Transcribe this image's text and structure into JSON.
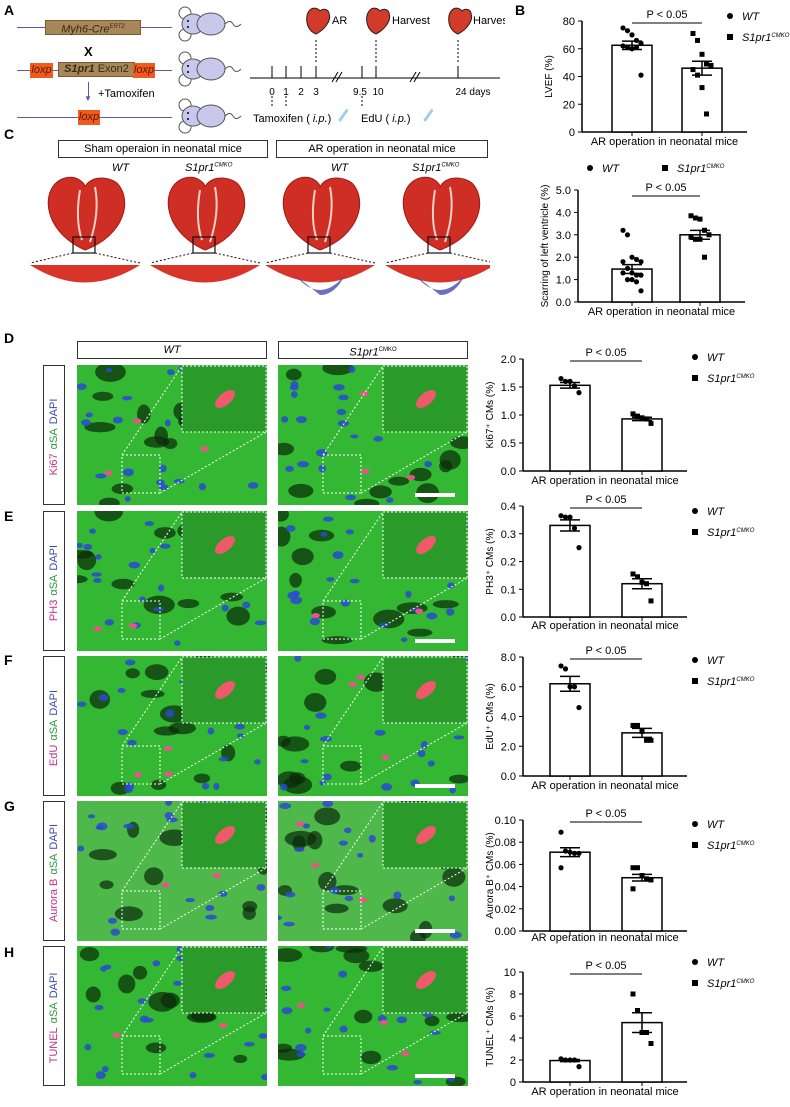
{
  "panels": {
    "A": "A",
    "B": "B",
    "C": "C",
    "D": "D",
    "E": "E",
    "F": "F",
    "G": "G",
    "H": "H"
  },
  "panel_a": {
    "cre": "Myh6-Cre",
    "cre_sup": "ERT2",
    "cross": "X",
    "loxp": "loxp",
    "gene": "S1pr1",
    "exon": "Exon2",
    "tamoxifen_step": "+Tamoxifen",
    "timeline": {
      "events": [
        "AR",
        "Harvest",
        "Harvest"
      ],
      "ticks": [
        "0",
        "1",
        "2",
        "3",
        "9.5",
        "10",
        "24 days"
      ],
      "tamoxifen": "Tamoxifen",
      "edu": "EdU",
      "ip": "i.p."
    }
  },
  "panel_c": {
    "sham_header": "Sham operaion in neonatal mice",
    "ar_header": "AR operation in neonatal mice",
    "wt": "WT",
    "ko": "S1pr1",
    "ko_sup": "CMKO"
  },
  "micro_headers": {
    "wt": "WT",
    "ko": "S1pr1",
    "ko_sup": "CMKO"
  },
  "stain_rows": [
    {
      "marker": "Ki67",
      "asa": "αSA",
      "dapi": "DAPI"
    },
    {
      "marker": "PH3",
      "asa": "αSA",
      "dapi": "DAPI"
    },
    {
      "marker": "EdU",
      "asa": "αSA",
      "dapi": "DAPI"
    },
    {
      "marker": "Aurora B",
      "asa": "αSA",
      "dapi": "DAPI"
    },
    {
      "marker": "TUNEL",
      "asa": "αSA",
      "dapi": "DAPI"
    }
  ],
  "colors": {
    "marker": "#c0308a",
    "asa": "#2a9a3a",
    "dapi": "#3a4ab0",
    "myocardium": "#d8342a",
    "fibrosis": "#4a4ab0",
    "alpha_sa": "#2fc42f"
  },
  "chart_data": [
    {
      "id": "lvef",
      "type": "bar",
      "ylabel": "LVEF (%)",
      "xlabel": "AR operation in neonatal mice",
      "ylim": [
        0,
        80
      ],
      "yticks": [
        "0",
        "20",
        "40",
        "60",
        "80"
      ],
      "significance": "P < 0.05",
      "legend": {
        "wt": "WT",
        "ko": "S1pr1",
        "ko_sup": "CMKO"
      },
      "legend_placement": "right",
      "series": [
        {
          "name": "WT",
          "mean": 62.5,
          "sem": 3,
          "points": [
            75,
            73,
            70,
            66,
            64,
            62,
            61,
            60,
            61,
            41
          ]
        },
        {
          "name": "S1pr1 CMKO",
          "mean": 46,
          "sem": 5,
          "points": [
            71,
            66,
            56,
            49,
            48,
            45,
            41,
            32,
            13
          ]
        }
      ]
    },
    {
      "id": "scar",
      "type": "bar",
      "ylabel": "Scarring of left ventricle (%)",
      "xlabel": "AR operation in neonatal mice",
      "ylim": [
        0,
        5
      ],
      "yticks": [
        "0.0",
        "1.0",
        "2.0",
        "3.0",
        "4.0",
        "5.0"
      ],
      "significance": "P < 0.05",
      "legend": {
        "wt": "WT",
        "ko": "S1pr1",
        "ko_sup": "CMKO"
      },
      "legend_placement": "top",
      "series": [
        {
          "name": "WT",
          "mean": 1.47,
          "sem": 0.2,
          "points": [
            3.2,
            3.0,
            2.0,
            1.9,
            1.8,
            1.8,
            1.5,
            1.3,
            1.2,
            1.2,
            1.3,
            1.0,
            1.0,
            0.9,
            0.5
          ]
        },
        {
          "name": "S1pr1 CMKO",
          "mean": 3.0,
          "sem": 0.2,
          "points": [
            3.85,
            3.75,
            3.7,
            3.2,
            3.0,
            2.9,
            2.8,
            2.8,
            2.0
          ]
        }
      ]
    },
    {
      "id": "ki67",
      "type": "bar",
      "ylabel": "Ki67⁺ CMs (%)",
      "xlabel": "AR operation in neonatal mice",
      "ylim": [
        0,
        2
      ],
      "yticks": [
        "0.0",
        "0.5",
        "1.0",
        "1.5",
        "2.0"
      ],
      "significance": "P < 0.05",
      "legend": {
        "wt": "WT",
        "ko": "S1pr1",
        "ko_sup": "CMKO"
      },
      "legend_placement": "right",
      "series": [
        {
          "name": "WT",
          "mean": 1.53,
          "sem": 0.05,
          "points": [
            1.65,
            1.6,
            1.6,
            1.52,
            1.4
          ]
        },
        {
          "name": "S1pr1 CMKO",
          "mean": 0.93,
          "sem": 0.03,
          "points": [
            1.02,
            0.98,
            0.95,
            0.93,
            0.85
          ]
        }
      ]
    },
    {
      "id": "ph3",
      "type": "bar",
      "ylabel": "PH3⁺ CMs (%)",
      "xlabel": "AR operation in neonatal mice",
      "ylim": [
        0,
        0.4
      ],
      "yticks": [
        "0.0",
        "0.1",
        "0.2",
        "0.3",
        "0.4"
      ],
      "significance": "P < 0.05",
      "legend": {
        "wt": "WT",
        "ko": "S1pr1",
        "ko_sup": "CMKO"
      },
      "legend_placement": "right",
      "series": [
        {
          "name": "WT",
          "mean": 0.33,
          "sem": 0.02,
          "points": [
            0.365,
            0.36,
            0.36,
            0.32,
            0.25
          ]
        },
        {
          "name": "S1pr1 CMKO",
          "mean": 0.12,
          "sem": 0.018,
          "points": [
            0.155,
            0.145,
            0.125,
            0.12,
            0.058
          ]
        }
      ]
    },
    {
      "id": "edu",
      "type": "bar",
      "ylabel": "EdU⁺ CMs (%)",
      "xlabel": "AR operation in neonatal mice",
      "ylim": [
        0,
        8
      ],
      "yticks": [
        "0.0",
        "2.0",
        "4.0",
        "6.0",
        "8.0"
      ],
      "significance": "P < 0.05",
      "legend": {
        "wt": "WT",
        "ko": "S1pr1",
        "ko_sup": "CMKO"
      },
      "legend_placement": "right",
      "series": [
        {
          "name": "WT",
          "mean": 6.2,
          "sem": 0.5,
          "points": [
            7.4,
            7.2,
            6.0,
            6.0,
            4.6
          ]
        },
        {
          "name": "S1pr1 CMKO",
          "mean": 2.9,
          "sem": 0.3,
          "points": [
            3.4,
            3.4,
            3.0,
            2.4,
            2.4
          ]
        }
      ]
    },
    {
      "id": "aurorab",
      "type": "bar",
      "ylabel": "Aurora B⁺ CMs (%)",
      "xlabel": "AR operation in neonatal mice",
      "ylim": [
        0,
        0.1
      ],
      "yticks": [
        "0.00",
        "0.02",
        "0.04",
        "0.06",
        "0.08",
        "0.10"
      ],
      "significance": "P < 0.05",
      "legend": {
        "wt": "WT",
        "ko": "S1pr1",
        "ko_sup": "CMKO"
      },
      "legend_placement": "right",
      "series": [
        {
          "name": "WT",
          "mean": 0.071,
          "sem": 0.004,
          "points": [
            0.089,
            0.072,
            0.071,
            0.07,
            0.07,
            0.057
          ]
        },
        {
          "name": "S1pr1 CMKO",
          "mean": 0.048,
          "sem": 0.003,
          "points": [
            0.057,
            0.057,
            0.05,
            0.047,
            0.046,
            0.038
          ]
        }
      ]
    },
    {
      "id": "tunel",
      "type": "bar",
      "ylabel": "TUNEL⁺ CMs (%)",
      "xlabel": "AR operation in neonatal mice",
      "ylim": [
        0,
        10
      ],
      "yticks": [
        "0",
        "2",
        "4",
        "6",
        "8",
        "10"
      ],
      "significance": "P < 0.05",
      "legend": {
        "wt": "WT",
        "ko": "S1pr1",
        "ko_sup": "CMKO"
      },
      "legend_placement": "right",
      "series": [
        {
          "name": "WT",
          "mean": 1.95,
          "sem": 0.1,
          "points": [
            2.1,
            2.0,
            2.0,
            2.0,
            1.4
          ]
        },
        {
          "name": "S1pr1 CMKO",
          "mean": 5.4,
          "sem": 0.9,
          "points": [
            8.0,
            6.5,
            4.5,
            4.5,
            3.5
          ]
        }
      ]
    }
  ]
}
